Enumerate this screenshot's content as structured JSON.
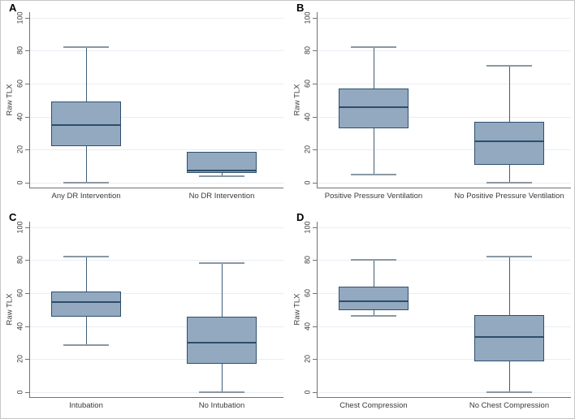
{
  "figure": {
    "background": "#ffffff",
    "border_color": "#c6c6c6",
    "box_fill": "#92a9c0",
    "box_border": "#2f506e",
    "median_color": "#2e4d68",
    "whisker_color": "#3f5d7a",
    "cap_color": "#8a98a3",
    "grid_color": "#e9eef3",
    "axis_color": "#737373",
    "text_color": "#3a3a3a"
  },
  "chart_data": [
    {
      "type": "box",
      "panel": "A",
      "ylabel": "Raw TLX",
      "ylim": [
        0,
        100
      ],
      "yticks": [
        0,
        20,
        40,
        60,
        80,
        100
      ],
      "grid": true,
      "legend": "none",
      "groups": [
        {
          "label": "Any DR Intervention",
          "whisker_low": 0,
          "q1": 22,
          "median": 35,
          "q3": 49,
          "whisker_high": 82
        },
        {
          "label": "No DR Intervention",
          "whisker_low": 4,
          "q1": 6,
          "median": 7.5,
          "q3": 18.5,
          "whisker_high": 18.5
        }
      ]
    },
    {
      "type": "box",
      "panel": "B",
      "ylabel": "Raw TLX",
      "ylim": [
        0,
        100
      ],
      "yticks": [
        0,
        20,
        40,
        60,
        80,
        100
      ],
      "grid": true,
      "legend": "none",
      "groups": [
        {
          "label": "Positive Pressure Ventilation",
          "whisker_low": 5,
          "q1": 33,
          "median": 45.5,
          "q3": 57,
          "whisker_high": 82
        },
        {
          "label": "No Positive Pressure Ventilation",
          "whisker_low": 0,
          "q1": 11,
          "median": 25,
          "q3": 37,
          "whisker_high": 71
        }
      ]
    },
    {
      "type": "box",
      "panel": "C",
      "ylabel": "Raw TLX",
      "ylim": [
        0,
        100
      ],
      "yticks": [
        0,
        20,
        40,
        60,
        80,
        100
      ],
      "grid": true,
      "legend": "none",
      "groups": [
        {
          "label": "Intubation",
          "whisker_low": 28.5,
          "q1": 45.5,
          "median": 54.5,
          "q3": 61,
          "whisker_high": 82
        },
        {
          "label": "No Intubation",
          "whisker_low": 0,
          "q1": 17,
          "median": 30,
          "q3": 45.5,
          "whisker_high": 78
        }
      ]
    },
    {
      "type": "box",
      "panel": "D",
      "ylabel": "Raw TLX",
      "ylim": [
        0,
        100
      ],
      "yticks": [
        0,
        20,
        40,
        60,
        80,
        100
      ],
      "grid": true,
      "legend": "none",
      "groups": [
        {
          "label": "Chest Compression",
          "whisker_low": 46,
          "q1": 49.5,
          "median": 55,
          "q3": 64,
          "whisker_high": 80
        },
        {
          "label": "No Chest Compression",
          "whisker_low": 0,
          "q1": 18.5,
          "median": 33.5,
          "q3": 46.5,
          "whisker_high": 82
        }
      ]
    }
  ]
}
